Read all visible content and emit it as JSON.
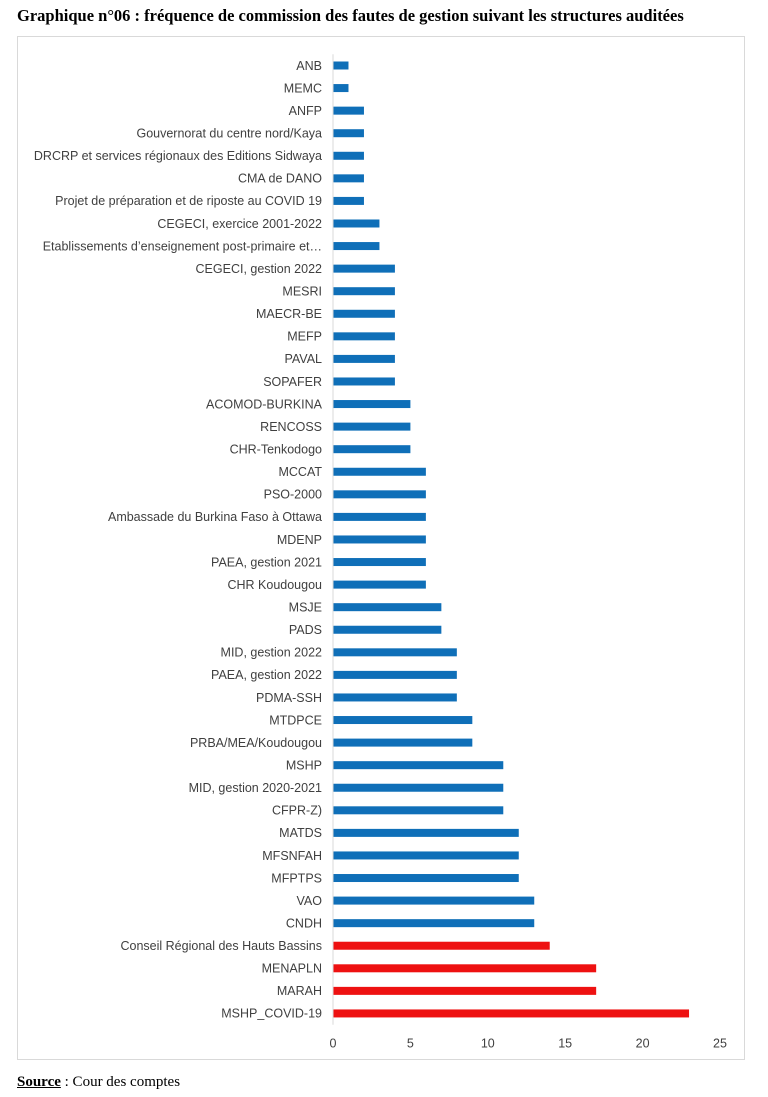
{
  "heading": "Graphique n°06 : fréquence de commission des fautes de gestion suivant les structures auditées",
  "source": {
    "label": "Source",
    "text": " : Cour des comptes"
  },
  "colors": {
    "normal": "#0f6fb8",
    "highlight": "#ee1111",
    "axis": "#d9d9d9",
    "text": "#404040"
  },
  "chart_data": {
    "type": "bar",
    "orientation": "horizontal",
    "categories": [
      "ANB",
      "MEMC",
      "ANFP",
      "Gouvernorat du centre nord/Kaya",
      "DRCRP et services régionaux des Editions Sidwaya",
      "CMA de DANO",
      "Projet de préparation et de riposte au COVID 19",
      "CEGECI, exercice 2001-2022",
      "Etablissements d’enseignement post-primaire et…",
      "CEGECI, gestion 2022",
      "MESRI",
      "MAECR-BE",
      "MEFP",
      "PAVAL",
      "SOPAFER",
      "ACOMOD-BURKINA",
      "RENCOSS",
      "CHR-Tenkodogo",
      "MCCAT",
      "PSO-2000",
      "Ambassade du Burkina Faso à Ottawa",
      "MDENP",
      "PAEA, gestion 2021",
      "CHR Koudougou",
      "MSJE",
      "PADS",
      "MID, gestion 2022",
      "PAEA, gestion 2022",
      "PDMA-SSH",
      "MTDPCE",
      "PRBA/MEA/Koudougou",
      "MSHP",
      "MID, gestion 2020-2021",
      "CFPR-Z)",
      "MATDS",
      "MFSNFAH",
      "MFPTPS",
      "VAO",
      "CNDH",
      "Conseil Régional des Hauts Bassins",
      "MENAPLN",
      "MARAH",
      "MSHP_COVID-19"
    ],
    "values": [
      1,
      1,
      2,
      2,
      2,
      2,
      2,
      3,
      3,
      4,
      4,
      4,
      4,
      4,
      4,
      5,
      5,
      5,
      6,
      6,
      6,
      6,
      6,
      6,
      7,
      7,
      8,
      8,
      8,
      9,
      9,
      11,
      11,
      11,
      12,
      12,
      12,
      13,
      13,
      14,
      17,
      17,
      23
    ],
    "highlighted": [
      false,
      false,
      false,
      false,
      false,
      false,
      false,
      false,
      false,
      false,
      false,
      false,
      false,
      false,
      false,
      false,
      false,
      false,
      false,
      false,
      false,
      false,
      false,
      false,
      false,
      false,
      false,
      false,
      false,
      false,
      false,
      false,
      false,
      false,
      false,
      false,
      false,
      false,
      false,
      true,
      true,
      true,
      true
    ],
    "xlim": [
      0,
      25
    ],
    "xticks": [
      0,
      5,
      10,
      15,
      20,
      25
    ],
    "grid": false,
    "legend": "none"
  }
}
